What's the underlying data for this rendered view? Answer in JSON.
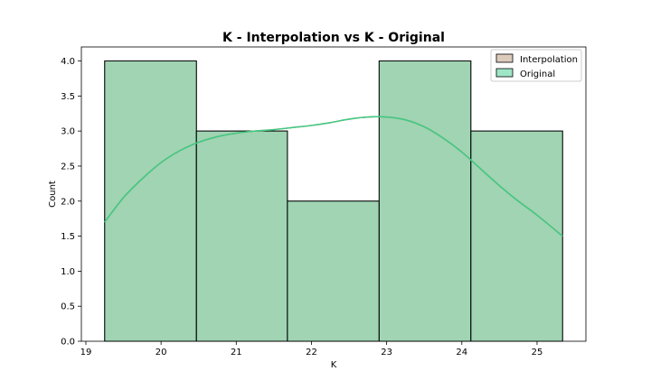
{
  "chart_data": {
    "type": "histogram",
    "title": "K - Interpolation vs K - Original",
    "xlabel": "K",
    "ylabel": "Count",
    "xlim": [
      18.94,
      25.65
    ],
    "ylim": [
      0,
      4.2
    ],
    "xticks": [
      19,
      20,
      21,
      22,
      23,
      24,
      25
    ],
    "yticks": [
      0.0,
      0.5,
      1.0,
      1.5,
      2.0,
      2.5,
      3.0,
      3.5,
      4.0
    ],
    "legend_position": "top-right",
    "bins": [
      {
        "x0": 19.25,
        "x1": 20.47,
        "count": 4
      },
      {
        "x0": 20.47,
        "x1": 21.68,
        "count": 3
      },
      {
        "x0": 21.68,
        "x1": 22.9,
        "count": 2
      },
      {
        "x0": 22.9,
        "x1": 24.12,
        "count": 4
      },
      {
        "x0": 24.12,
        "x1": 25.34,
        "count": 3
      }
    ],
    "series": [
      {
        "name": "Interpolation",
        "color": "#c7a88f",
        "kde_color": "#b5795b"
      },
      {
        "name": "Original",
        "color": "#5dd6a0",
        "kde_color": "#3ecc85"
      }
    ],
    "kde": {
      "x": [
        19.25,
        19.5,
        19.75,
        20.0,
        20.25,
        20.5,
        20.75,
        21.0,
        21.25,
        21.5,
        21.75,
        22.0,
        22.25,
        22.5,
        22.75,
        23.0,
        23.25,
        23.5,
        23.75,
        24.0,
        24.25,
        24.5,
        24.75,
        25.0,
        25.34
      ],
      "y": [
        1.7,
        2.05,
        2.32,
        2.55,
        2.72,
        2.84,
        2.92,
        2.97,
        3.0,
        3.02,
        3.05,
        3.08,
        3.12,
        3.17,
        3.2,
        3.2,
        3.16,
        3.06,
        2.9,
        2.7,
        2.46,
        2.22,
        2.0,
        1.8,
        1.5
      ]
    }
  }
}
